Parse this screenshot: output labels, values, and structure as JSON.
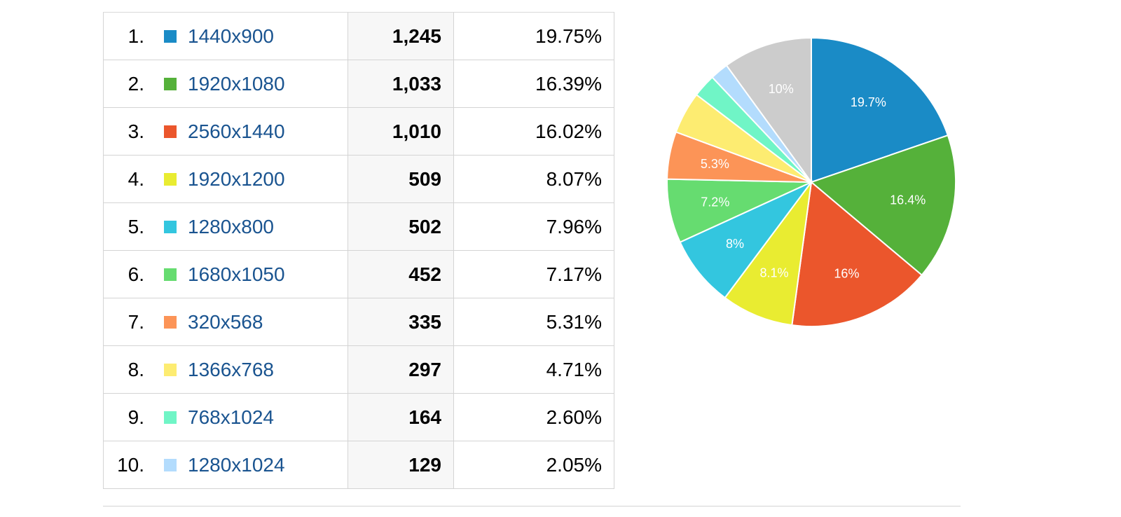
{
  "rows": [
    {
      "rank": "1.",
      "resolution": "1440x900",
      "sessions": "1,245",
      "percent": "19.75%",
      "color": "#1a8bc6"
    },
    {
      "rank": "2.",
      "resolution": "1920x1080",
      "sessions": "1,033",
      "percent": "16.39%",
      "color": "#55b13a"
    },
    {
      "rank": "3.",
      "resolution": "2560x1440",
      "sessions": "1,010",
      "percent": "16.02%",
      "color": "#eb562c"
    },
    {
      "rank": "4.",
      "resolution": "1920x1200",
      "sessions": "509",
      "percent": "8.07%",
      "color": "#e9ec31"
    },
    {
      "rank": "5.",
      "resolution": "1280x800",
      "sessions": "502",
      "percent": "7.96%",
      "color": "#33c6df"
    },
    {
      "rank": "6.",
      "resolution": "1680x1050",
      "sessions": "452",
      "percent": "7.17%",
      "color": "#66dc70"
    },
    {
      "rank": "7.",
      "resolution": "320x568",
      "sessions": "335",
      "percent": "5.31%",
      "color": "#fc9457"
    },
    {
      "rank": "8.",
      "resolution": "1366x768",
      "sessions": "297",
      "percent": "4.71%",
      "color": "#fdec71"
    },
    {
      "rank": "9.",
      "resolution": "768x1024",
      "sessions": "164",
      "percent": "2.60%",
      "color": "#70f5c6"
    },
    {
      "rank": "10.",
      "resolution": "1280x1024",
      "sessions": "129",
      "percent": "2.05%",
      "color": "#b3dcfd"
    }
  ],
  "chart_data": {
    "type": "pie",
    "categories": [
      "1440x900",
      "1920x1080",
      "2560x1440",
      "1920x1200",
      "1280x800",
      "1680x1050",
      "320x568",
      "1366x768",
      "768x1024",
      "1280x1024",
      ""
    ],
    "values": [
      19.75,
      16.39,
      16.02,
      8.07,
      7.96,
      7.17,
      5.31,
      4.71,
      2.6,
      2.05,
      10.0
    ],
    "slice_labels": [
      "19.7%",
      "16.4%",
      "16%",
      "8.1%",
      "8%",
      "7.2%",
      "5.3%",
      "",
      "",
      "",
      "10%"
    ],
    "colors": [
      "#1a8bc6",
      "#55b13a",
      "#eb562c",
      "#e9ec31",
      "#33c6df",
      "#66dc70",
      "#fc9457",
      "#fdec71",
      "#70f5c6",
      "#b3dcfd",
      "#cccccc"
    ]
  }
}
